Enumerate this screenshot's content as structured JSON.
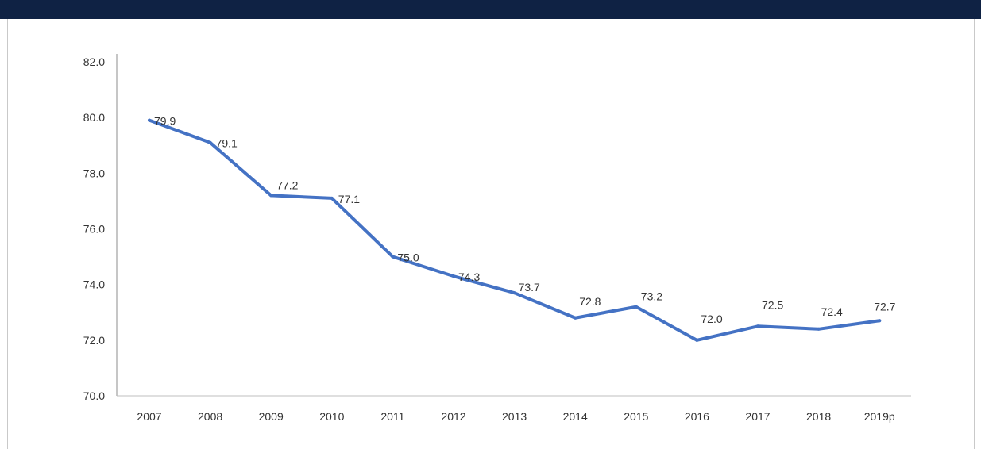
{
  "header": {
    "title": "",
    "background_color": "#0f2244"
  },
  "chart_data": {
    "type": "line",
    "title": "",
    "xlabel": "",
    "ylabel": "",
    "categories": [
      "2007",
      "2008",
      "2009",
      "2010",
      "2011",
      "2012",
      "2013",
      "2014",
      "2015",
      "2016",
      "2017",
      "2018",
      "2019p"
    ],
    "series": [
      {
        "values": [
          79.9,
          79.1,
          77.2,
          77.1,
          75.0,
          74.3,
          73.7,
          72.8,
          73.2,
          72.0,
          72.5,
          72.4,
          72.7
        ],
        "labels": [
          "79.9",
          "79.1",
          "77.2",
          "77.1",
          "75.0",
          "74.3",
          "73.7",
          "72.8",
          "73.2",
          "72.0",
          "72.5",
          "72.4",
          "72.7"
        ],
        "color": "#4472c4"
      }
    ],
    "y_ticks": [
      "70.0",
      "72.0",
      "74.0",
      "76.0",
      "78.0",
      "80.0",
      "82.0"
    ],
    "ylim": [
      70,
      82
    ],
    "grid": false,
    "legend": "none"
  }
}
